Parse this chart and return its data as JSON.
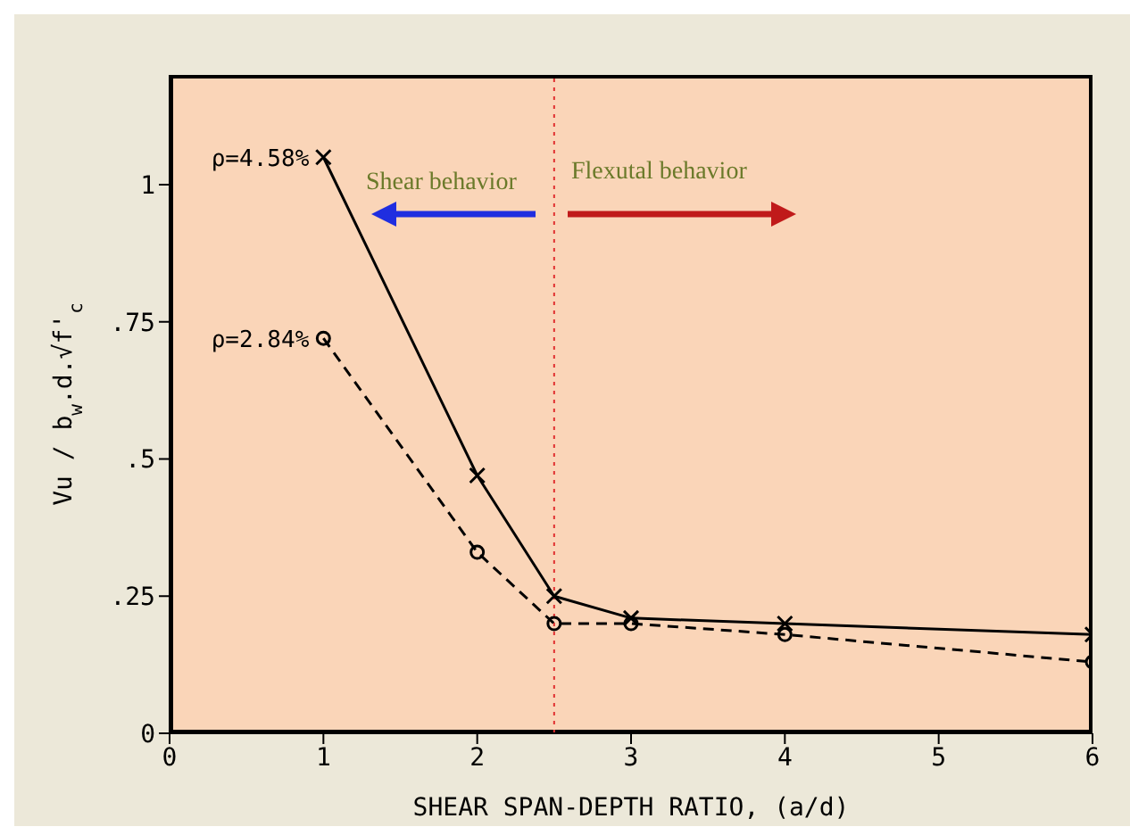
{
  "chart_data": {
    "type": "line",
    "xlabel": "SHEAR SPAN-DEPTH RATIO, (a/d)",
    "ylabel": "Vu / b$_{w}$.d.√f'$_{c}$",
    "xlim": [
      0,
      6
    ],
    "xticks": [
      0,
      1,
      2,
      3,
      4,
      5,
      6
    ],
    "ylim": [
      0,
      1.2
    ],
    "yticks": [
      {
        "value": 0,
        "label": "0"
      },
      {
        "value": 0.25,
        "label": ".25"
      },
      {
        "value": 0.5,
        "label": ".5"
      },
      {
        "value": 0.75,
        "label": ".75"
      },
      {
        "value": 1,
        "label": "1"
      }
    ],
    "series": [
      {
        "name": "ρ=4.58%",
        "color": "#000000",
        "marker": "cross",
        "line_style": "solid",
        "x": [
          1,
          2,
          2.5,
          3,
          4,
          6
        ],
        "values": [
          1.05,
          0.47,
          0.25,
          0.21,
          0.2,
          0.18
        ]
      },
      {
        "name": "ρ=2.84%",
        "color": "#000000",
        "marker": "circle",
        "line_style": "dashed",
        "x": [
          1,
          2,
          2.5,
          3,
          4,
          6
        ],
        "values": [
          0.72,
          0.33,
          0.2,
          0.2,
          0.18,
          0.13
        ]
      }
    ],
    "ref_lines": [
      {
        "axis": "x",
        "value": 2.5,
        "label": null,
        "color": "#e03030",
        "line_style": "dotted"
      }
    ],
    "annotations": [
      "Shear behavior",
      "Flexutal behavior"
    ]
  }
}
